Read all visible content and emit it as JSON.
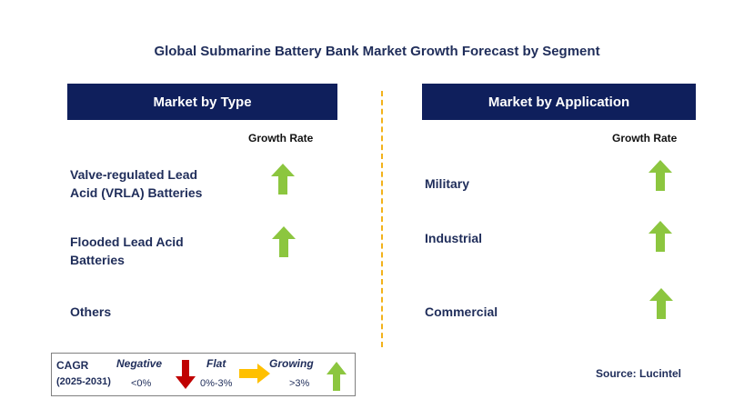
{
  "title": "Global Submarine Battery Bank Market Growth Forecast by Segment",
  "left_panel": {
    "header": "Market by Type",
    "growth_label": "Growth Rate",
    "rows": [
      {
        "label_line1": "Valve-regulated Lead",
        "label_line2": "Acid (VRLA) Batteries",
        "indicator": "growing-arrow-icon",
        "color": "#8cc63f"
      },
      {
        "label_line1": "Flooded Lead Acid",
        "label_line2": "Batteries",
        "indicator": "growing-arrow-icon",
        "color": "#8cc63f"
      },
      {
        "label_line1": "Others",
        "label_line2": "",
        "indicator": "none"
      }
    ]
  },
  "right_panel": {
    "header": "Market by Application",
    "growth_label": "Growth Rate",
    "rows": [
      {
        "label": "Military",
        "indicator": "growing-arrow-icon",
        "color": "#8cc63f"
      },
      {
        "label": "Industrial",
        "indicator": "growing-arrow-icon",
        "color": "#8cc63f"
      },
      {
        "label": "Commercial",
        "indicator": "growing-arrow-icon",
        "color": "#8cc63f"
      }
    ]
  },
  "legend": {
    "cagr": "CAGR",
    "period": "(2025-2031)",
    "negative_label": "Negative",
    "negative_value": "<0%",
    "negative_color": "#c00000",
    "flat_label": "Flat",
    "flat_value": "0%-3%",
    "flat_color": "#ffc000",
    "growing_label": "Growing",
    "growing_value": ">3%",
    "growing_color": "#8cc63f"
  },
  "source": "Source: Lucintel",
  "colors": {
    "header_bg": "#0f1f5c",
    "divider": "#f2b21b",
    "text": "#1f2d5a"
  }
}
